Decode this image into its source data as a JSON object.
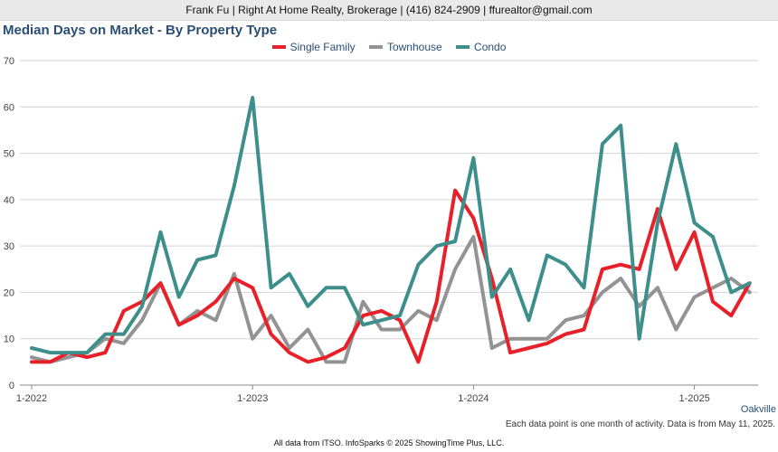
{
  "header": {
    "contact": "Frank Fu | Right At Home Realty, Brokerage | (416) 824-2909 | ffurealtor@gmail.com"
  },
  "region_label": "Oakville",
  "note": "Each data point is one month of activity. Data is from May 11, 2025.",
  "footer": "All data from ITSO. InfoSparks © 2025 ShowingTime Plus, LLC.",
  "chart_data": {
    "type": "line",
    "title": "Median Days on Market - By Property Type",
    "x_start": "2022-01",
    "x_tick_labels": [
      "1-2022",
      "1-2023",
      "1-2024",
      "1-2025"
    ],
    "x_tick_months": [
      "2022-01",
      "2023-01",
      "2024-01",
      "2025-01"
    ],
    "ylim": [
      0,
      70
    ],
    "y_ticks": [
      0,
      10,
      20,
      30,
      40,
      50,
      60,
      70
    ],
    "grid": true,
    "legend_position": "top-center",
    "series": [
      {
        "name": "Single Family",
        "color": "#e8202a",
        "values": [
          5,
          5,
          7,
          6,
          7,
          16,
          18,
          22,
          13,
          15,
          18,
          23,
          21,
          11,
          7,
          5,
          6,
          8,
          15,
          16,
          14,
          5,
          18,
          42,
          36,
          23,
          7,
          8,
          9,
          11,
          12,
          25,
          26,
          25,
          38,
          25,
          33,
          18,
          15,
          22
        ]
      },
      {
        "name": "Townhouse",
        "color": "#939393",
        "values": [
          6,
          5,
          6,
          7,
          10,
          9,
          14,
          22,
          13,
          16,
          14,
          24,
          10,
          15,
          8,
          12,
          5,
          5,
          18,
          12,
          12,
          16,
          14,
          25,
          32,
          8,
          10,
          10,
          10,
          14,
          15,
          20,
          23,
          17,
          21,
          12,
          19,
          21,
          23,
          20
        ]
      },
      {
        "name": "Condo",
        "color": "#3e8f8c",
        "values": [
          8,
          7,
          7,
          7,
          11,
          11,
          17,
          33,
          19,
          27,
          28,
          43,
          62,
          21,
          24,
          17,
          21,
          21,
          13,
          14,
          15,
          26,
          30,
          31,
          49,
          19,
          25,
          14,
          28,
          26,
          21,
          52,
          56,
          10,
          35,
          52,
          35,
          32,
          20,
          22
        ]
      }
    ]
  }
}
